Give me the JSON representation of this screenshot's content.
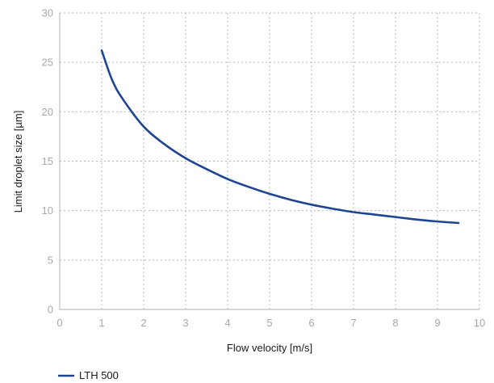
{
  "chart_data": {
    "type": "line",
    "xlabel": "Flow velocity [m/s]",
    "ylabel": "Limit droplet size [µm]",
    "xlim": [
      0,
      10
    ],
    "ylim": [
      0,
      30
    ],
    "x_ticks": [
      0,
      1,
      2,
      3,
      4,
      5,
      6,
      7,
      8,
      9,
      10
    ],
    "y_ticks": [
      0,
      5,
      10,
      15,
      20,
      25,
      30
    ],
    "grid": true,
    "legend_position": "bottom-left",
    "series": [
      {
        "name": "LTH 500",
        "color": "#1f4592",
        "x": [
          1.0,
          1.25,
          1.5,
          2.0,
          2.5,
          3.0,
          3.5,
          4.0,
          4.5,
          5.0,
          5.5,
          6.0,
          6.5,
          7.0,
          7.5,
          8.0,
          8.5,
          9.0,
          9.5
        ],
        "y": [
          26.2,
          23.2,
          21.3,
          18.5,
          16.7,
          15.3,
          14.2,
          13.2,
          12.4,
          11.7,
          11.1,
          10.6,
          10.2,
          9.85,
          9.6,
          9.35,
          9.1,
          8.9,
          8.75
        ]
      }
    ]
  }
}
